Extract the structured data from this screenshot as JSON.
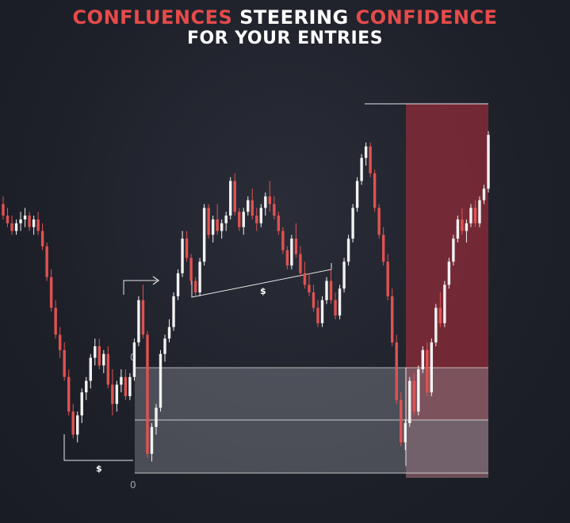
{
  "title": {
    "line1": [
      {
        "text": "CONFLUENCES",
        "color": "red"
      },
      {
        "text": " STEERING ",
        "color": "white"
      },
      {
        "text": "CONFIDENCE",
        "color": "red"
      }
    ],
    "line2": "FOR YOUR ENTRIES"
  },
  "colors": {
    "bull": "#f2f2f2",
    "bear": "#e05252",
    "zone_red": "#8b2c38",
    "zone_grey": "#8a8d96",
    "line": "#e8e8e8"
  },
  "annotations": {
    "dollar_left": "$",
    "dollar_mid": "$",
    "zero_top": "0",
    "zero_bottom": "0"
  },
  "chart_data": {
    "type": "candlestick",
    "ylim": [
      0,
      100
    ],
    "grid": false,
    "legend": "none",
    "candles": [
      {
        "o": 70,
        "h": 72,
        "l": 66,
        "c": 67
      },
      {
        "o": 67,
        "h": 69,
        "l": 64,
        "c": 65
      },
      {
        "o": 65,
        "h": 67,
        "l": 62,
        "c": 63
      },
      {
        "o": 63,
        "h": 66,
        "l": 62,
        "c": 65
      },
      {
        "o": 65,
        "h": 68,
        "l": 63,
        "c": 66
      },
      {
        "o": 66,
        "h": 69,
        "l": 64,
        "c": 67
      },
      {
        "o": 67,
        "h": 68,
        "l": 63,
        "c": 64
      },
      {
        "o": 64,
        "h": 67,
        "l": 62,
        "c": 66
      },
      {
        "o": 66,
        "h": 68,
        "l": 62,
        "c": 63
      },
      {
        "o": 63,
        "h": 65,
        "l": 58,
        "c": 59
      },
      {
        "o": 59,
        "h": 60,
        "l": 50,
        "c": 51
      },
      {
        "o": 51,
        "h": 53,
        "l": 42,
        "c": 43
      },
      {
        "o": 43,
        "h": 45,
        "l": 35,
        "c": 36
      },
      {
        "o": 36,
        "h": 38,
        "l": 30,
        "c": 32
      },
      {
        "o": 32,
        "h": 34,
        "l": 24,
        "c": 25
      },
      {
        "o": 25,
        "h": 27,
        "l": 15,
        "c": 16
      },
      {
        "o": 16,
        "h": 18,
        "l": 9,
        "c": 10
      },
      {
        "o": 10,
        "h": 16,
        "l": 8,
        "c": 15
      },
      {
        "o": 15,
        "h": 22,
        "l": 13,
        "c": 21
      },
      {
        "o": 21,
        "h": 25,
        "l": 19,
        "c": 24
      },
      {
        "o": 24,
        "h": 31,
        "l": 22,
        "c": 30
      },
      {
        "o": 30,
        "h": 35,
        "l": 28,
        "c": 33
      },
      {
        "o": 33,
        "h": 35,
        "l": 27,
        "c": 28
      },
      {
        "o": 28,
        "h": 32,
        "l": 26,
        "c": 31
      },
      {
        "o": 31,
        "h": 33,
        "l": 22,
        "c": 23
      },
      {
        "o": 23,
        "h": 27,
        "l": 15,
        "c": 18
      },
      {
        "o": 18,
        "h": 24,
        "l": 16,
        "c": 23
      },
      {
        "o": 23,
        "h": 27,
        "l": 21,
        "c": 25
      },
      {
        "o": 25,
        "h": 27,
        "l": 19,
        "c": 20
      },
      {
        "o": 20,
        "h": 26,
        "l": 19,
        "c": 25
      },
      {
        "o": 25,
        "h": 35,
        "l": 24,
        "c": 34
      },
      {
        "o": 34,
        "h": 46,
        "l": 33,
        "c": 45
      },
      {
        "o": 45,
        "h": 49,
        "l": 35,
        "c": 36
      },
      {
        "o": 36,
        "h": 37,
        "l": 4,
        "c": 5
      },
      {
        "o": 5,
        "h": 13,
        "l": 3,
        "c": 12
      },
      {
        "o": 12,
        "h": 18,
        "l": 10,
        "c": 17
      },
      {
        "o": 17,
        "h": 32,
        "l": 16,
        "c": 31
      },
      {
        "o": 31,
        "h": 36,
        "l": 29,
        "c": 35
      },
      {
        "o": 35,
        "h": 40,
        "l": 34,
        "c": 38
      },
      {
        "o": 38,
        "h": 47,
        "l": 37,
        "c": 46
      },
      {
        "o": 46,
        "h": 53,
        "l": 45,
        "c": 52
      },
      {
        "o": 52,
        "h": 63,
        "l": 51,
        "c": 61
      },
      {
        "o": 61,
        "h": 63,
        "l": 55,
        "c": 56
      },
      {
        "o": 56,
        "h": 57,
        "l": 49,
        "c": 50
      },
      {
        "o": 50,
        "h": 51,
        "l": 46,
        "c": 47
      },
      {
        "o": 47,
        "h": 56,
        "l": 46,
        "c": 55
      },
      {
        "o": 55,
        "h": 70,
        "l": 54,
        "c": 69
      },
      {
        "o": 69,
        "h": 70,
        "l": 61,
        "c": 62
      },
      {
        "o": 62,
        "h": 67,
        "l": 60,
        "c": 66
      },
      {
        "o": 66,
        "h": 70,
        "l": 62,
        "c": 63
      },
      {
        "o": 63,
        "h": 66,
        "l": 61,
        "c": 65
      },
      {
        "o": 65,
        "h": 68,
        "l": 63,
        "c": 67
      },
      {
        "o": 67,
        "h": 77,
        "l": 66,
        "c": 76
      },
      {
        "o": 76,
        "h": 78,
        "l": 67,
        "c": 68
      },
      {
        "o": 68,
        "h": 69,
        "l": 63,
        "c": 64
      },
      {
        "o": 64,
        "h": 69,
        "l": 62,
        "c": 68
      },
      {
        "o": 68,
        "h": 72,
        "l": 67,
        "c": 71
      },
      {
        "o": 71,
        "h": 74,
        "l": 66,
        "c": 67
      },
      {
        "o": 67,
        "h": 69,
        "l": 63,
        "c": 65
      },
      {
        "o": 65,
        "h": 70,
        "l": 64,
        "c": 69
      },
      {
        "o": 69,
        "h": 73,
        "l": 67,
        "c": 72
      },
      {
        "o": 72,
        "h": 76,
        "l": 68,
        "c": 70
      },
      {
        "o": 70,
        "h": 72,
        "l": 66,
        "c": 67
      },
      {
        "o": 67,
        "h": 68,
        "l": 62,
        "c": 63
      },
      {
        "o": 63,
        "h": 64,
        "l": 57,
        "c": 58
      },
      {
        "o": 58,
        "h": 59,
        "l": 53,
        "c": 54
      },
      {
        "o": 54,
        "h": 62,
        "l": 53,
        "c": 61
      },
      {
        "o": 61,
        "h": 65,
        "l": 56,
        "c": 57
      },
      {
        "o": 57,
        "h": 59,
        "l": 51,
        "c": 52
      },
      {
        "o": 52,
        "h": 55,
        "l": 48,
        "c": 49
      },
      {
        "o": 49,
        "h": 52,
        "l": 46,
        "c": 47
      },
      {
        "o": 47,
        "h": 49,
        "l": 42,
        "c": 43
      },
      {
        "o": 43,
        "h": 45,
        "l": 38,
        "c": 39
      },
      {
        "o": 39,
        "h": 46,
        "l": 38,
        "c": 45
      },
      {
        "o": 45,
        "h": 51,
        "l": 44,
        "c": 50
      },
      {
        "o": 50,
        "h": 53,
        "l": 44,
        "c": 45
      },
      {
        "o": 45,
        "h": 47,
        "l": 40,
        "c": 41
      },
      {
        "o": 41,
        "h": 49,
        "l": 40,
        "c": 48
      },
      {
        "o": 48,
        "h": 56,
        "l": 47,
        "c": 55
      },
      {
        "o": 55,
        "h": 62,
        "l": 54,
        "c": 61
      },
      {
        "o": 61,
        "h": 70,
        "l": 60,
        "c": 69
      },
      {
        "o": 69,
        "h": 77,
        "l": 68,
        "c": 76
      },
      {
        "o": 76,
        "h": 83,
        "l": 75,
        "c": 82
      },
      {
        "o": 82,
        "h": 86,
        "l": 80,
        "c": 85
      },
      {
        "o": 85,
        "h": 86,
        "l": 77,
        "c": 78
      },
      {
        "o": 78,
        "h": 79,
        "l": 68,
        "c": 69
      },
      {
        "o": 69,
        "h": 70,
        "l": 61,
        "c": 62
      },
      {
        "o": 62,
        "h": 64,
        "l": 54,
        "c": 55
      },
      {
        "o": 55,
        "h": 57,
        "l": 45,
        "c": 46
      },
      {
        "o": 46,
        "h": 48,
        "l": 33,
        "c": 34
      },
      {
        "o": 34,
        "h": 36,
        "l": 18,
        "c": 19
      },
      {
        "o": 19,
        "h": 21,
        "l": 7,
        "c": 8
      },
      {
        "o": 8,
        "h": 14,
        "l": 6,
        "c": 13
      },
      {
        "o": 13,
        "h": 25,
        "l": 12,
        "c": 24
      },
      {
        "o": 24,
        "h": 26,
        "l": 15,
        "c": 16
      },
      {
        "o": 16,
        "h": 28,
        "l": 15,
        "c": 27
      },
      {
        "o": 27,
        "h": 33,
        "l": 26,
        "c": 32
      },
      {
        "o": 32,
        "h": 34,
        "l": 20,
        "c": 21
      },
      {
        "o": 21,
        "h": 35,
        "l": 20,
        "c": 34
      },
      {
        "o": 34,
        "h": 44,
        "l": 33,
        "c": 43
      },
      {
        "o": 43,
        "h": 47,
        "l": 38,
        "c": 39
      },
      {
        "o": 39,
        "h": 50,
        "l": 38,
        "c": 49
      },
      {
        "o": 49,
        "h": 56,
        "l": 48,
        "c": 55
      },
      {
        "o": 55,
        "h": 62,
        "l": 54,
        "c": 61
      },
      {
        "o": 61,
        "h": 67,
        "l": 60,
        "c": 66
      },
      {
        "o": 66,
        "h": 69,
        "l": 62,
        "c": 63
      },
      {
        "o": 63,
        "h": 66,
        "l": 60,
        "c": 65
      },
      {
        "o": 65,
        "h": 70,
        "l": 64,
        "c": 69
      },
      {
        "o": 69,
        "h": 71,
        "l": 64,
        "c": 65
      },
      {
        "o": 65,
        "h": 72,
        "l": 64,
        "c": 71
      },
      {
        "o": 71,
        "h": 75,
        "l": 70,
        "c": 74
      },
      {
        "o": 74,
        "h": 89,
        "l": 73,
        "c": 88
      }
    ]
  }
}
